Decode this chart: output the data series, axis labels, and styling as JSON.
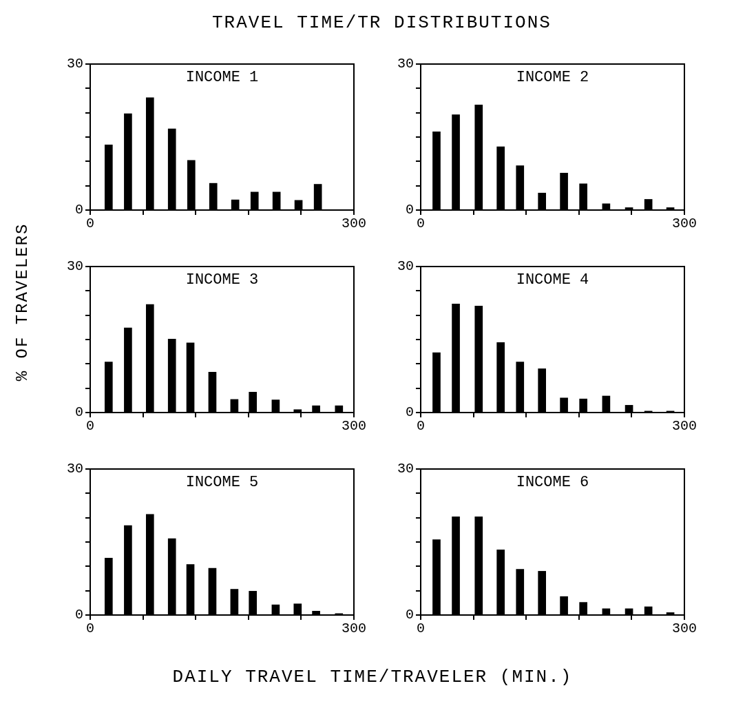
{
  "chart_data": [
    {
      "type": "bar",
      "title": "INCOME 1",
      "x": [
        21,
        43,
        68,
        93,
        115,
        140,
        165,
        187,
        212,
        237,
        259
      ],
      "values": [
        13.4,
        19.8,
        23.1,
        16.7,
        10.2,
        5.5,
        2.1,
        3.7,
        3.7,
        2.0,
        5.3
      ],
      "color": "#000000",
      "xlim": [
        0,
        300
      ],
      "ylim": [
        0,
        30
      ],
      "xticks": [
        {
          "value": 0,
          "label": "0"
        },
        {
          "value": 60,
          "label": null
        },
        {
          "value": 120,
          "label": null
        },
        {
          "value": 180,
          "label": null
        },
        {
          "value": 240,
          "label": null
        },
        {
          "value": 300,
          "label": "300"
        }
      ],
      "yticks": [
        {
          "value": 0,
          "label": "0"
        },
        {
          "value": 5,
          "label": null
        },
        {
          "value": 10,
          "label": null
        },
        {
          "value": 15,
          "label": null
        },
        {
          "value": 20,
          "label": null
        },
        {
          "value": 25,
          "label": null
        },
        {
          "value": 30,
          "label": "30"
        }
      ]
    },
    {
      "type": "bar",
      "title": "INCOME 2",
      "x": [
        18,
        40,
        66,
        91,
        113,
        138,
        163,
        185,
        211,
        237,
        259,
        284
      ],
      "values": [
        16.1,
        19.6,
        21.6,
        13.0,
        9.1,
        3.5,
        7.6,
        5.4,
        1.3,
        0.5,
        2.2,
        0.5
      ],
      "color": "#000000",
      "xlim": [
        0,
        300
      ],
      "ylim": [
        0,
        30
      ],
      "xticks": [
        {
          "value": 0,
          "label": "0"
        },
        {
          "value": 60,
          "label": null
        },
        {
          "value": 120,
          "label": null
        },
        {
          "value": 180,
          "label": null
        },
        {
          "value": 240,
          "label": null
        },
        {
          "value": 300,
          "label": "300"
        }
      ],
      "yticks": [
        {
          "value": 0,
          "label": "0"
        },
        {
          "value": 5,
          "label": null
        },
        {
          "value": 10,
          "label": null
        },
        {
          "value": 15,
          "label": null
        },
        {
          "value": 20,
          "label": null
        },
        {
          "value": 25,
          "label": null
        },
        {
          "value": 30,
          "label": "30"
        }
      ]
    },
    {
      "type": "bar",
      "title": "INCOME 3",
      "x": [
        21,
        43,
        68,
        93,
        114,
        139,
        164,
        185,
        211,
        236,
        257,
        283
      ],
      "values": [
        10.4,
        17.4,
        22.2,
        15.1,
        14.3,
        8.3,
        2.7,
        4.2,
        2.6,
        0.6,
        1.4,
        1.4
      ],
      "color": "#000000",
      "xlim": [
        0,
        300
      ],
      "ylim": [
        0,
        30
      ],
      "xticks": [
        {
          "value": 0,
          "label": "0"
        },
        {
          "value": 60,
          "label": null
        },
        {
          "value": 120,
          "label": null
        },
        {
          "value": 180,
          "label": null
        },
        {
          "value": 240,
          "label": null
        },
        {
          "value": 300,
          "label": "300"
        }
      ],
      "yticks": [
        {
          "value": 0,
          "label": "0"
        },
        {
          "value": 5,
          "label": null
        },
        {
          "value": 10,
          "label": null
        },
        {
          "value": 15,
          "label": null
        },
        {
          "value": 20,
          "label": null
        },
        {
          "value": 25,
          "label": null
        },
        {
          "value": 30,
          "label": "30"
        }
      ]
    },
    {
      "type": "bar",
      "title": "INCOME 4",
      "x": [
        18,
        40,
        66,
        91,
        113,
        138,
        163,
        185,
        211,
        237,
        259,
        284
      ],
      "values": [
        12.3,
        22.3,
        21.9,
        14.4,
        10.4,
        9.0,
        3.0,
        2.8,
        3.4,
        1.5,
        0.3,
        0.3
      ],
      "color": "#000000",
      "xlim": [
        0,
        300
      ],
      "ylim": [
        0,
        30
      ],
      "xticks": [
        {
          "value": 0,
          "label": "0"
        },
        {
          "value": 60,
          "label": null
        },
        {
          "value": 120,
          "label": null
        },
        {
          "value": 180,
          "label": null
        },
        {
          "value": 240,
          "label": null
        },
        {
          "value": 300,
          "label": "300"
        }
      ],
      "yticks": [
        {
          "value": 0,
          "label": "0"
        },
        {
          "value": 5,
          "label": null
        },
        {
          "value": 10,
          "label": null
        },
        {
          "value": 15,
          "label": null
        },
        {
          "value": 20,
          "label": null
        },
        {
          "value": 25,
          "label": null
        },
        {
          "value": 30,
          "label": "30"
        }
      ]
    },
    {
      "type": "bar",
      "title": "INCOME 5",
      "x": [
        21,
        43,
        68,
        93,
        114,
        139,
        164,
        185,
        211,
        236,
        257,
        283
      ],
      "values": [
        11.7,
        18.4,
        20.7,
        15.7,
        10.4,
        9.6,
        5.3,
        4.9,
        2.1,
        2.3,
        0.8,
        0.3
      ],
      "color": "#000000",
      "xlim": [
        0,
        300
      ],
      "ylim": [
        0,
        30
      ],
      "xticks": [
        {
          "value": 0,
          "label": "0"
        },
        {
          "value": 60,
          "label": null
        },
        {
          "value": 120,
          "label": null
        },
        {
          "value": 180,
          "label": null
        },
        {
          "value": 240,
          "label": null
        },
        {
          "value": 300,
          "label": "300"
        }
      ],
      "yticks": [
        {
          "value": 0,
          "label": "0"
        },
        {
          "value": 5,
          "label": null
        },
        {
          "value": 10,
          "label": null
        },
        {
          "value": 15,
          "label": null
        },
        {
          "value": 20,
          "label": null
        },
        {
          "value": 25,
          "label": null
        },
        {
          "value": 30,
          "label": "30"
        }
      ]
    },
    {
      "type": "bar",
      "title": "INCOME 6",
      "x": [
        18,
        40,
        66,
        91,
        113,
        138,
        163,
        185,
        211,
        237,
        259,
        284
      ],
      "values": [
        15.5,
        20.2,
        20.2,
        13.4,
        9.4,
        9.0,
        3.8,
        2.6,
        1.3,
        1.3,
        1.7,
        0.5
      ],
      "color": "#000000",
      "xlim": [
        0,
        300
      ],
      "ylim": [
        0,
        30
      ],
      "xticks": [
        {
          "value": 0,
          "label": "0"
        },
        {
          "value": 60,
          "label": null
        },
        {
          "value": 120,
          "label": null
        },
        {
          "value": 180,
          "label": null
        },
        {
          "value": 240,
          "label": null
        },
        {
          "value": 300,
          "label": "300"
        }
      ],
      "yticks": [
        {
          "value": 0,
          "label": "0"
        },
        {
          "value": 5,
          "label": null
        },
        {
          "value": 10,
          "label": null
        },
        {
          "value": 15,
          "label": null
        },
        {
          "value": 20,
          "label": null
        },
        {
          "value": 25,
          "label": null
        },
        {
          "value": 30,
          "label": "30"
        }
      ]
    },
    {
      "type": "other",
      "title": "TRAVEL TIME/TR DISTRIBUTIONS",
      "ylabel": "% OF TRAVELERS",
      "xlabel": "DAILY TRAVEL TIME/TRAVELER (MIN.)"
    }
  ]
}
